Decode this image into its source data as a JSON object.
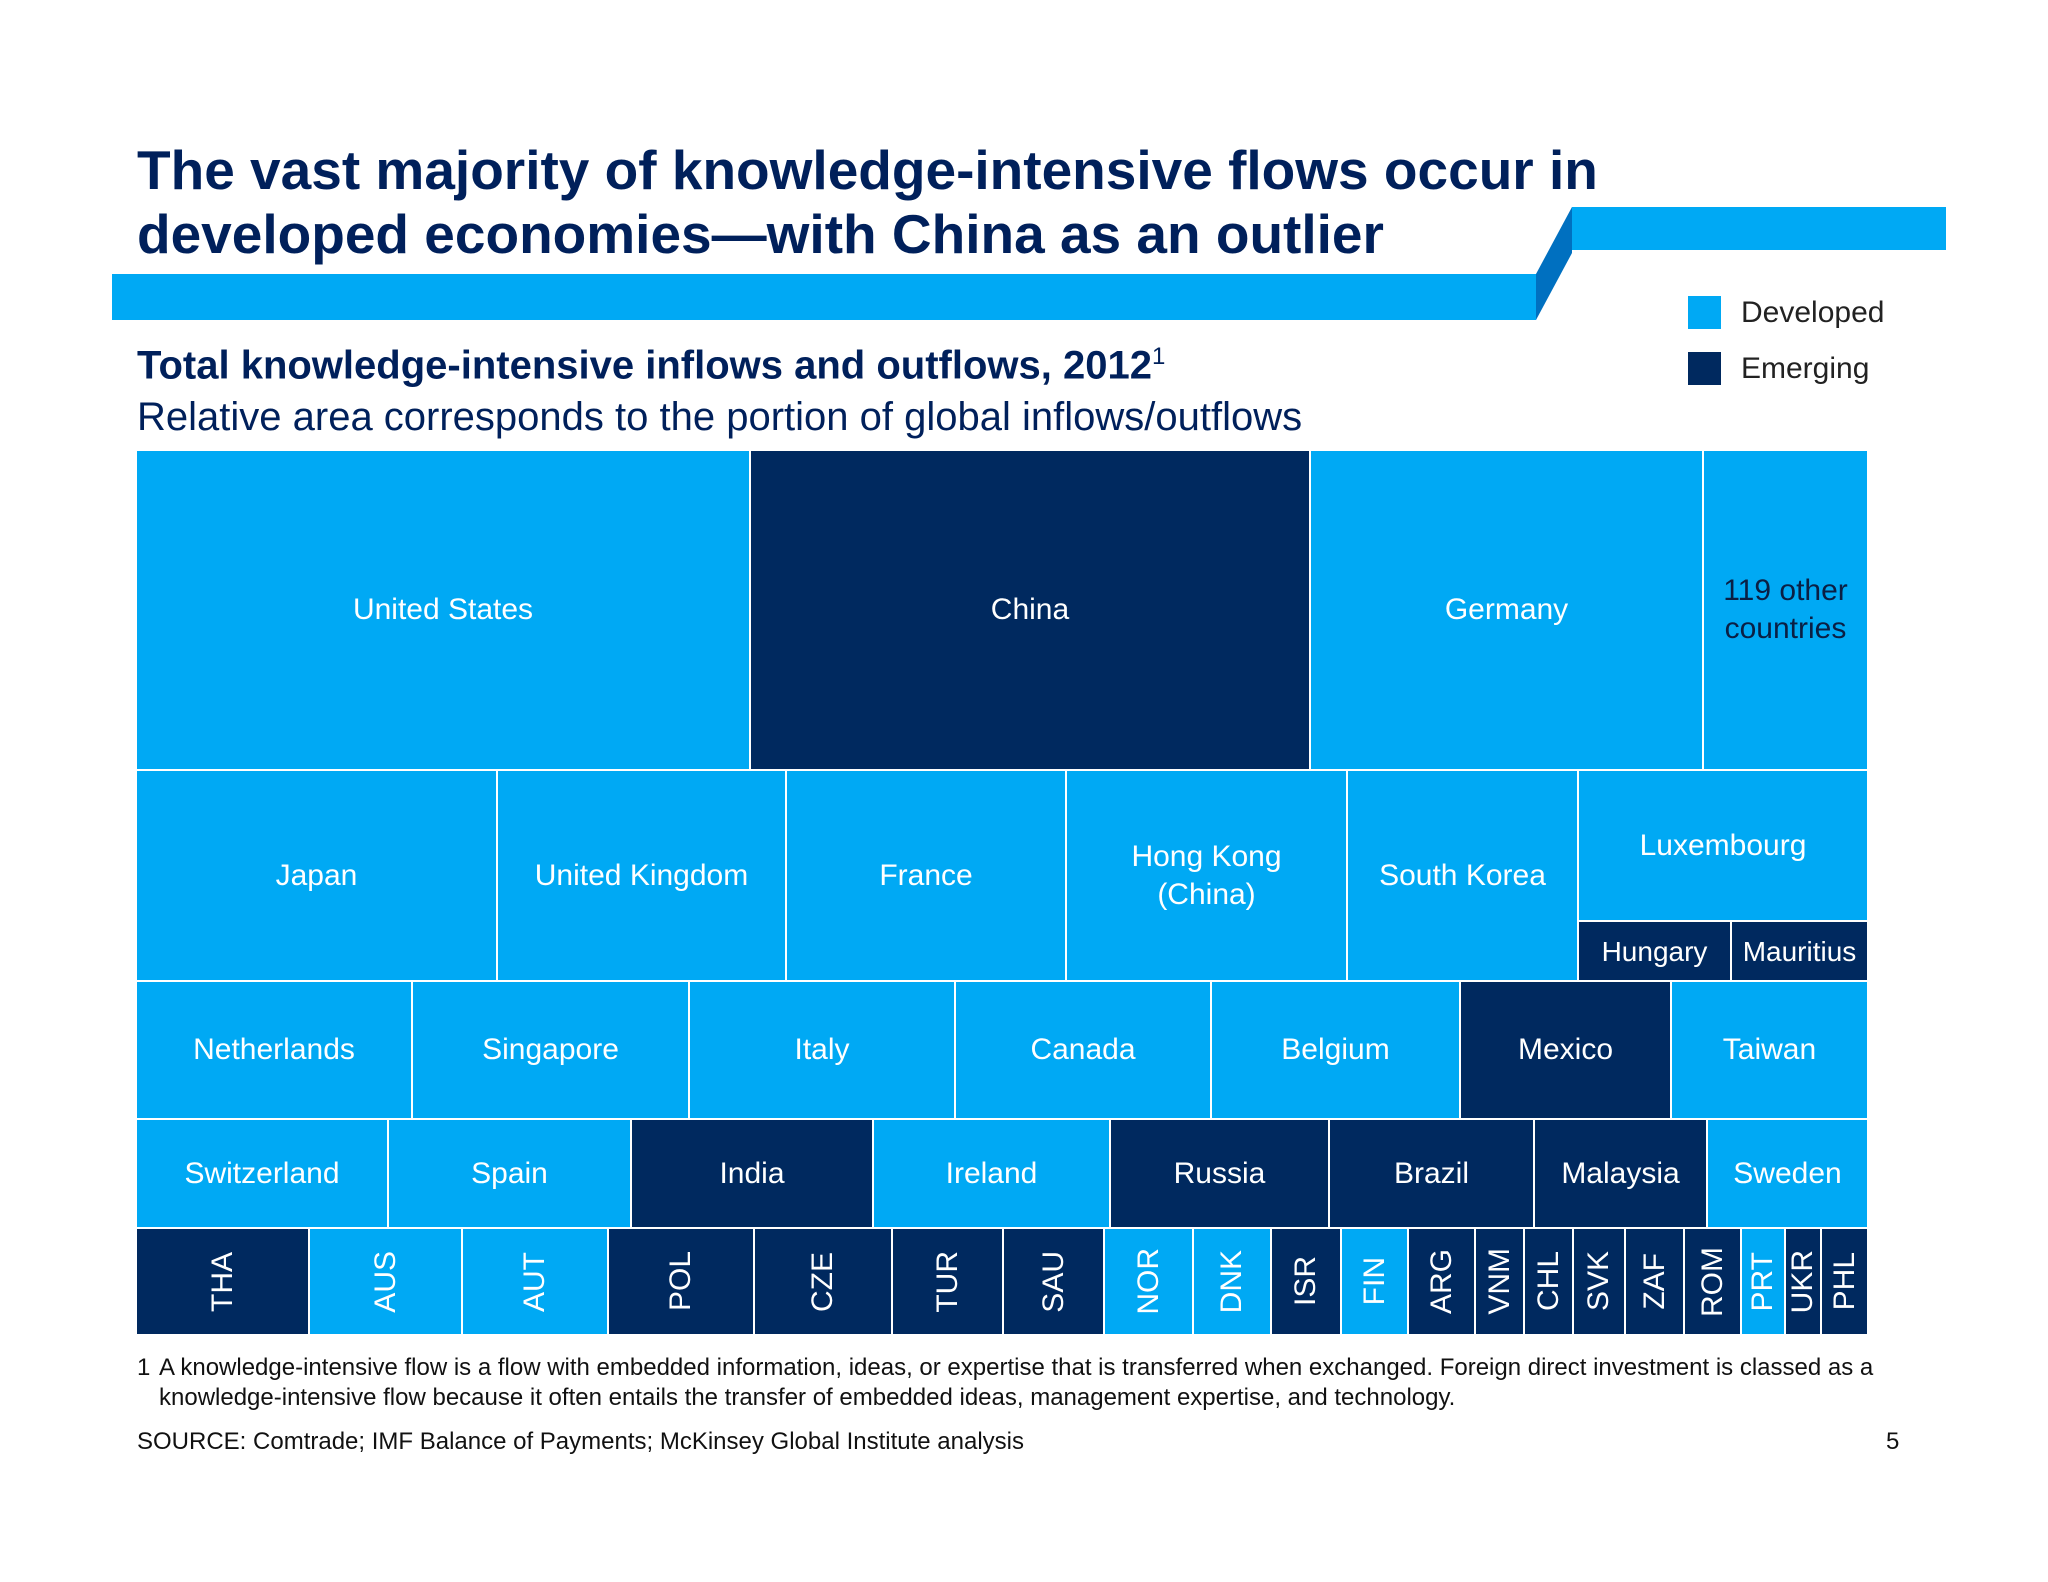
{
  "title": "The vast majority of knowledge-intensive flows occur in developed economies—with China as an outlier",
  "colors": {
    "developed": "#00A9F4",
    "emerging": "#00295F",
    "accent": "#0070C0"
  },
  "legend": {
    "developed_label": "Developed",
    "emerging_label": "Emerging"
  },
  "subtitle": {
    "text": "Total knowledge-intensive inflows and outflows, 2012",
    "footnote_mark": "1"
  },
  "description": "Relative area corresponds to the portion of global inflows/outflows",
  "chart_data": {
    "type": "treemap",
    "title": "Total knowledge-intensive inflows and outflows, 2012",
    "subtitle": "Relative area corresponds to the portion of global inflows/outflows",
    "legend": [
      "Developed",
      "Emerging"
    ],
    "legend_position": "top-right",
    "units": "approximate share of treemap area (%)",
    "items": [
      {
        "label": "United States",
        "group": "Developed",
        "value": 12.8
      },
      {
        "label": "China",
        "group": "Emerging",
        "value": 11.7
      },
      {
        "label": "Germany",
        "group": "Developed",
        "value": 8.2
      },
      {
        "label": "119 other countries",
        "group": "Developed",
        "value": 3.5
      },
      {
        "label": "Japan",
        "group": "Developed",
        "value": 4.9
      },
      {
        "label": "United Kingdom",
        "group": "Developed",
        "value": 4.0
      },
      {
        "label": "France",
        "group": "Developed",
        "value": 3.9
      },
      {
        "label": "Hong Kong (China)",
        "group": "Developed",
        "value": 3.9
      },
      {
        "label": "South Korea",
        "group": "Developed",
        "value": 3.2
      },
      {
        "label": "Luxembourg",
        "group": "Developed",
        "value": 2.1
      },
      {
        "label": "Hungary",
        "group": "Emerging",
        "value": 0.6
      },
      {
        "label": "Mauritius",
        "group": "Emerging",
        "value": 0.6
      },
      {
        "label": "Netherlands",
        "group": "Developed",
        "value": 2.5
      },
      {
        "label": "Singapore",
        "group": "Developed",
        "value": 2.5
      },
      {
        "label": "Italy",
        "group": "Developed",
        "value": 2.4
      },
      {
        "label": "Canada",
        "group": "Developed",
        "value": 2.3
      },
      {
        "label": "Belgium",
        "group": "Developed",
        "value": 2.2
      },
      {
        "label": "Mexico",
        "group": "Emerging",
        "value": 1.9
      },
      {
        "label": "Taiwan",
        "group": "Developed",
        "value": 1.8
      },
      {
        "label": "Switzerland",
        "group": "Developed",
        "value": 1.8
      },
      {
        "label": "Spain",
        "group": "Developed",
        "value": 1.7
      },
      {
        "label": "India",
        "group": "Emerging",
        "value": 1.7
      },
      {
        "label": "Ireland",
        "group": "Developed",
        "value": 1.7
      },
      {
        "label": "Russia",
        "group": "Emerging",
        "value": 1.5
      },
      {
        "label": "Brazil",
        "group": "Emerging",
        "value": 1.4
      },
      {
        "label": "Malaysia",
        "group": "Emerging",
        "value": 1.2
      },
      {
        "label": "Sweden",
        "group": "Developed",
        "value": 1.1
      },
      {
        "label": "THA",
        "group": "Emerging",
        "value": 1.2
      },
      {
        "label": "AUS",
        "group": "Developed",
        "value": 1.0
      },
      {
        "label": "AUT",
        "group": "Developed",
        "value": 0.95
      },
      {
        "label": "POL",
        "group": "Emerging",
        "value": 0.9
      },
      {
        "label": "CZE",
        "group": "Emerging",
        "value": 0.9
      },
      {
        "label": "TUR",
        "group": "Emerging",
        "value": 0.7
      },
      {
        "label": "SAU",
        "group": "Emerging",
        "value": 0.65
      },
      {
        "label": "NOR",
        "group": "Developed",
        "value": 0.55
      },
      {
        "label": "DNK",
        "group": "Developed",
        "value": 0.5
      },
      {
        "label": "ISR",
        "group": "Emerging",
        "value": 0.45
      },
      {
        "label": "FIN",
        "group": "Developed",
        "value": 0.45
      },
      {
        "label": "ARG",
        "group": "Emerging",
        "value": 0.4
      },
      {
        "label": "VNM",
        "group": "Emerging",
        "value": 0.35
      },
      {
        "label": "CHL",
        "group": "Emerging",
        "value": 0.35
      },
      {
        "label": "SVK",
        "group": "Emerging",
        "value": 0.35
      },
      {
        "label": "ZAF",
        "group": "Emerging",
        "value": 0.35
      },
      {
        "label": "ROM",
        "group": "Emerging",
        "value": 0.3
      },
      {
        "label": "PRT",
        "group": "Developed",
        "value": 0.3
      },
      {
        "label": "UKR",
        "group": "Emerging",
        "value": 0.25
      },
      {
        "label": "PHL",
        "group": "Emerging",
        "value": 0.25
      }
    ]
  },
  "footnote": {
    "number": "1",
    "text": "A knowledge-intensive flow is a flow with embedded information, ideas, or expertise that is transferred when exchanged. Foreign direct investment is classed as a knowledge-intensive flow because it often entails the transfer of embedded ideas, management expertise, and technology."
  },
  "source": "SOURCE: Comtrade; IMF Balance of Payments; McKinsey Global Institute analysis",
  "page_number": "5"
}
